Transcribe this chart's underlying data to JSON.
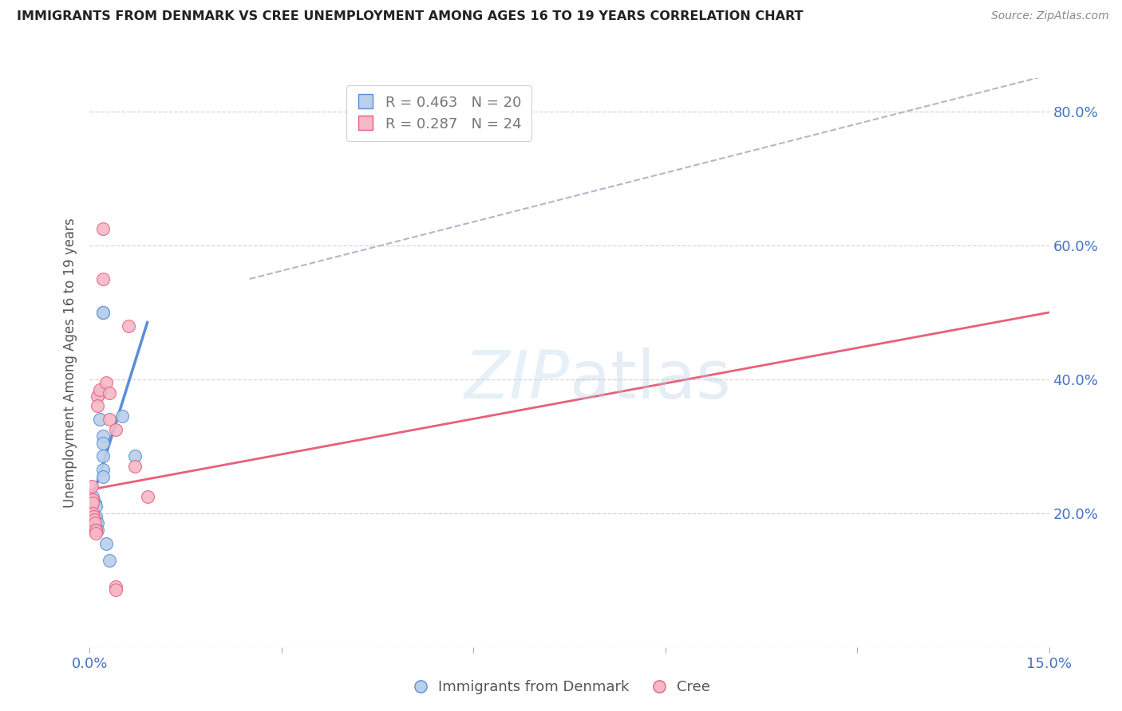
{
  "title": "IMMIGRANTS FROM DENMARK VS CREE UNEMPLOYMENT AMONG AGES 16 TO 19 YEARS CORRELATION CHART",
  "source": "Source: ZipAtlas.com",
  "ylabel": "Unemployment Among Ages 16 to 19 years",
  "x_min": 0.0,
  "x_max": 0.15,
  "y_min": 0.0,
  "y_max": 0.85,
  "x_ticks": [
    0.0,
    0.03,
    0.06,
    0.09,
    0.12,
    0.15
  ],
  "x_tick_labels": [
    "0.0%",
    "",
    "",
    "",
    "",
    "15.0%"
  ],
  "y_ticks": [
    0.0,
    0.2,
    0.4,
    0.6,
    0.8
  ],
  "y_tick_labels": [
    "",
    "20.0%",
    "40.0%",
    "60.0%",
    "80.0%"
  ],
  "watermark": "ZIPatlas",
  "denmark_color": "#b8d0ea",
  "cree_color": "#f5b8c8",
  "denmark_line_color": "#5b8dd9",
  "cree_line_color": "#e8607a",
  "diag_line_color": "#b0b8c8",
  "denmark_points": [
    [
      0.0005,
      0.225
    ],
    [
      0.0008,
      0.215
    ],
    [
      0.001,
      0.21
    ],
    [
      0.001,
      0.195
    ],
    [
      0.001,
      0.185
    ],
    [
      0.0012,
      0.185
    ],
    [
      0.0012,
      0.175
    ],
    [
      0.0015,
      0.38
    ],
    [
      0.0015,
      0.34
    ],
    [
      0.002,
      0.5
    ],
    [
      0.002,
      0.5
    ],
    [
      0.002,
      0.315
    ],
    [
      0.002,
      0.305
    ],
    [
      0.002,
      0.285
    ],
    [
      0.002,
      0.265
    ],
    [
      0.002,
      0.255
    ],
    [
      0.0025,
      0.155
    ],
    [
      0.003,
      0.13
    ],
    [
      0.005,
      0.345
    ],
    [
      0.007,
      0.285
    ]
  ],
  "cree_points": [
    [
      0.0003,
      0.24
    ],
    [
      0.0004,
      0.22
    ],
    [
      0.0005,
      0.215
    ],
    [
      0.0005,
      0.2
    ],
    [
      0.0006,
      0.195
    ],
    [
      0.0007,
      0.19
    ],
    [
      0.0008,
      0.185
    ],
    [
      0.0009,
      0.175
    ],
    [
      0.001,
      0.175
    ],
    [
      0.001,
      0.17
    ],
    [
      0.0012,
      0.375
    ],
    [
      0.0012,
      0.36
    ],
    [
      0.0015,
      0.385
    ],
    [
      0.002,
      0.625
    ],
    [
      0.002,
      0.55
    ],
    [
      0.0025,
      0.395
    ],
    [
      0.003,
      0.38
    ],
    [
      0.003,
      0.34
    ],
    [
      0.004,
      0.09
    ],
    [
      0.004,
      0.085
    ],
    [
      0.004,
      0.325
    ],
    [
      0.006,
      0.48
    ],
    [
      0.009,
      0.225
    ],
    [
      0.007,
      0.27
    ]
  ],
  "denmark_trendline_x": [
    0.0,
    0.009
  ],
  "denmark_trendline_y": [
    0.21,
    0.485
  ],
  "cree_trendline_x": [
    0.0,
    0.15
  ],
  "cree_trendline_y": [
    0.235,
    0.5
  ],
  "diag_trendline_x": [
    0.025,
    0.15
  ],
  "diag_trendline_y": [
    0.55,
    0.855
  ]
}
